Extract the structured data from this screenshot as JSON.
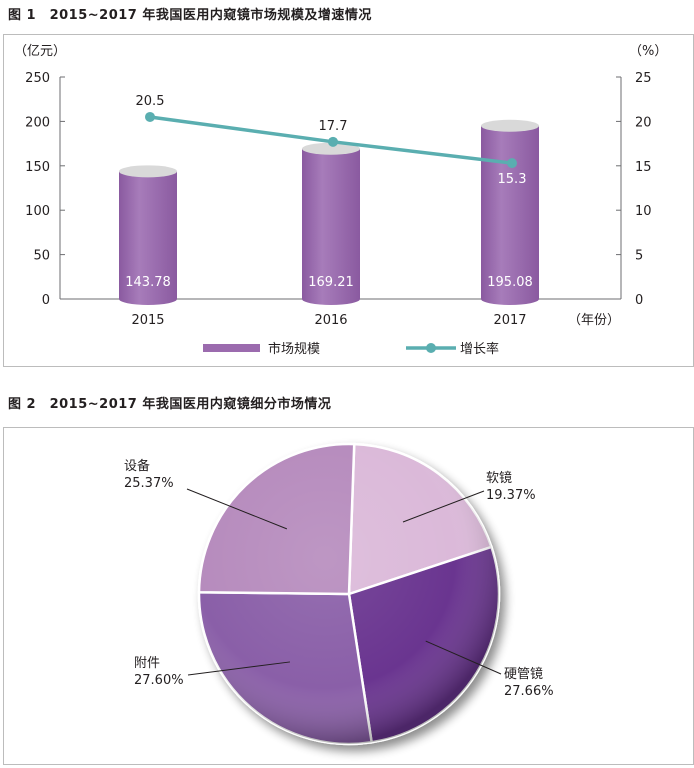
{
  "figure1": {
    "title": "图 1　2015~2017 年我国医用内窥镜市场规模及增速情况"
  },
  "figure2": {
    "title": "图 2　2015~2017 年我国医用内窥镜细分市场情况"
  },
  "chart_data": [
    {
      "type": "bar+line",
      "categories": [
        "2015",
        "2016",
        "2017"
      ],
      "xlabel": "（年份）",
      "y_left_label": "（亿元）",
      "y_right_label": "（%）",
      "y_left_ticks": [
        "0",
        "50",
        "100",
        "150",
        "200",
        "250"
      ],
      "y_right_ticks": [
        "0",
        "5",
        "10",
        "15",
        "20",
        "25"
      ],
      "ylim_left": [
        0,
        250
      ],
      "ylim_right": [
        0,
        25
      ],
      "series": [
        {
          "name": "市场规模",
          "type": "bar",
          "axis": "left",
          "values": [
            143.78,
            169.21,
            195.08
          ],
          "labels": [
            "143.78",
            "169.21",
            "195.08"
          ],
          "color": "#9b6bae"
        },
        {
          "name": "增长率",
          "type": "line",
          "axis": "right",
          "values": [
            20.5,
            17.7,
            15.3
          ],
          "labels": [
            "20.5",
            "17.7",
            "15.3"
          ],
          "color": "#5aaeb0"
        }
      ],
      "legend_position": "bottom",
      "grid": false
    },
    {
      "type": "pie",
      "slices": [
        {
          "label": "软镜",
          "value": 19.37,
          "value_label": "19.37%",
          "color": "#dbb9d9"
        },
        {
          "label": "硬管镜",
          "value": 27.66,
          "value_label": "27.66%",
          "color": "#6a3590"
        },
        {
          "label": "附件",
          "value": 27.6,
          "value_label": "27.60%",
          "color": "#8a5ea8"
        },
        {
          "label": "设备",
          "value": 25.37,
          "value_label": "25.37%",
          "color": "#b68bbd"
        }
      ]
    }
  ]
}
